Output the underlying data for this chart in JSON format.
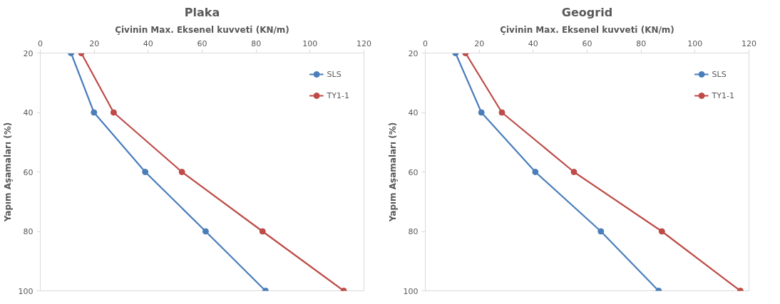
{
  "chart_data": [
    {
      "type": "line",
      "title": "Plaka",
      "xlabel": "Çivinin Max. Eksenel kuvveti (KN/m)",
      "ylabel": "Yapım Aşamaları (%)",
      "xlim": [
        0,
        120
      ],
      "xticks": [
        0,
        20,
        40,
        60,
        80,
        100,
        120
      ],
      "ylim": [
        100,
        20
      ],
      "yticks": [
        20,
        40,
        60,
        80,
        100
      ],
      "grid": false,
      "legend": "top right",
      "marker": "circle",
      "series": [
        {
          "name": "SLS",
          "color": "#4a7ebb",
          "x": [
            11.4,
            19.9,
            38.9,
            61.3,
            83.5
          ],
          "values": [
            20,
            40,
            60,
            80,
            100
          ]
        },
        {
          "name": "TY1-1",
          "color": "#be4b48",
          "x": [
            15.2,
            27.2,
            52.5,
            82.4,
            112.5
          ],
          "values": [
            20,
            40,
            60,
            80,
            100
          ]
        }
      ]
    },
    {
      "type": "line",
      "title": "Geogrid",
      "xlabel": "Çivinin Max. Eksenel kuvveti (KN/m)",
      "ylabel": "Yapım Aşamaları (%)",
      "xlim": [
        0,
        120
      ],
      "xticks": [
        0,
        20,
        40,
        60,
        80,
        100,
        120
      ],
      "ylim": [
        100,
        20
      ],
      "yticks": [
        20,
        40,
        60,
        80,
        100
      ],
      "grid": false,
      "legend": "top right",
      "marker": "circle",
      "series": [
        {
          "name": "SLS",
          "color": "#4a7ebb",
          "x": [
            11.2,
            20.8,
            40.8,
            65.1,
            86.5
          ],
          "values": [
            20,
            40,
            60,
            80,
            100
          ]
        },
        {
          "name": "TY1-1",
          "color": "#be4b48",
          "x": [
            14.9,
            28.4,
            55.1,
            87.7,
            116.8
          ],
          "values": [
            20,
            40,
            60,
            80,
            100
          ]
        }
      ]
    }
  ]
}
